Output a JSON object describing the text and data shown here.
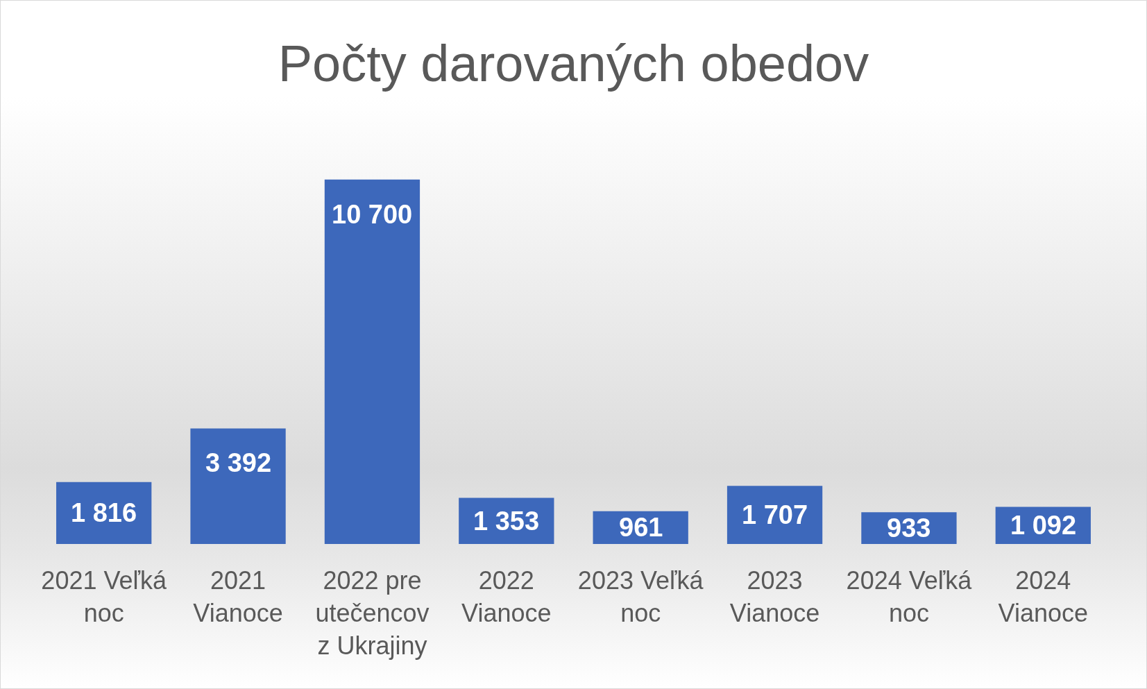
{
  "chart_data": {
    "type": "bar",
    "title": "Počty darovaných obedov",
    "categories": [
      "2021 Veľká noc",
      "2021 Vianoce",
      "2022 pre utečencov z Ukrajiny",
      "2022 Vianoce",
      "2023 Veľká noc",
      "2023 Vianoce",
      "2024 Veľká noc",
      "2024 Vianoce"
    ],
    "values": [
      1816,
      3392,
      10700,
      1353,
      961,
      1707,
      933,
      1092
    ],
    "value_labels": [
      "1 816",
      "3 392",
      "10 700",
      "1 353",
      "961",
      "1 707",
      "933",
      "1 092"
    ],
    "color": "#3d68bb"
  }
}
